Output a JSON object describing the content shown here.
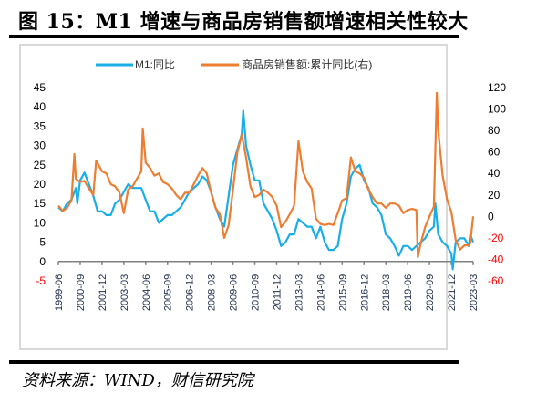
{
  "header": {
    "title": "图 15：M1 增速与商品房销售额增速相关性较大"
  },
  "footer": {
    "source": "资料来源：WIND，财信研究院"
  },
  "colors": {
    "m1": "#1aaee8",
    "sales": "#ed7d31",
    "axis": "#808080",
    "negative_tick": "#ff0000",
    "positive_tick": "#000000"
  },
  "chart_data": {
    "type": "line",
    "title": "M1 增速与商品房销售额增速相关性较大",
    "xlabel": "",
    "ylabel_left": "",
    "ylabel_right": "",
    "legend_position": "top-center",
    "grid": false,
    "legend": [
      "M1:同比",
      "商品房销售额:累计同比(右)"
    ],
    "x_tick_labels": [
      "1999-06",
      "2000-09",
      "2001-12",
      "2003-03",
      "2004-06",
      "2005-09",
      "2006-12",
      "2008-03",
      "2009-06",
      "2010-09",
      "2011-12",
      "2013-03",
      "2014-06",
      "2015-09",
      "2016-12",
      "2018-03",
      "2019-06",
      "2020-09",
      "2021-12",
      "2023-03"
    ],
    "y_left": {
      "ylim": [
        -5,
        45
      ],
      "ticks": [
        -5,
        0,
        5,
        10,
        15,
        20,
        25,
        30,
        35,
        40,
        45
      ]
    },
    "y_right": {
      "ylim": [
        -60,
        120
      ],
      "ticks": [
        -60,
        -40,
        -20,
        0,
        20,
        40,
        60,
        80,
        100,
        120
      ]
    },
    "x_range": [
      "1999-06",
      "2023-03"
    ],
    "series": [
      {
        "name": "M1:同比",
        "axis": "left",
        "points": [
          [
            "1999-06",
            14
          ],
          [
            "1999-09",
            13
          ],
          [
            "1999-12",
            15
          ],
          [
            "2000-03",
            16
          ],
          [
            "2000-06",
            19
          ],
          [
            "2000-07",
            15
          ],
          [
            "2000-09",
            21
          ],
          [
            "2000-12",
            23
          ],
          [
            "2001-03",
            20
          ],
          [
            "2001-06",
            17
          ],
          [
            "2001-09",
            13
          ],
          [
            "2001-12",
            13
          ],
          [
            "2002-03",
            12
          ],
          [
            "2002-06",
            12
          ],
          [
            "2002-09",
            15
          ],
          [
            "2002-12",
            16
          ],
          [
            "2003-03",
            18
          ],
          [
            "2003-06",
            20
          ],
          [
            "2003-09",
            19
          ],
          [
            "2003-12",
            19
          ],
          [
            "2004-03",
            19
          ],
          [
            "2004-06",
            16
          ],
          [
            "2004-09",
            13
          ],
          [
            "2004-12",
            13
          ],
          [
            "2005-03",
            10
          ],
          [
            "2005-06",
            11
          ],
          [
            "2005-09",
            12
          ],
          [
            "2005-12",
            12
          ],
          [
            "2006-03",
            13
          ],
          [
            "2006-06",
            14
          ],
          [
            "2006-09",
            16
          ],
          [
            "2006-12",
            18
          ],
          [
            "2007-03",
            19
          ],
          [
            "2007-06",
            20
          ],
          [
            "2007-09",
            22
          ],
          [
            "2007-12",
            21
          ],
          [
            "2008-03",
            18
          ],
          [
            "2008-06",
            14
          ],
          [
            "2008-09",
            11
          ],
          [
            "2008-12",
            9
          ],
          [
            "2009-03",
            17
          ],
          [
            "2009-06",
            25
          ],
          [
            "2009-09",
            29
          ],
          [
            "2009-12",
            33
          ],
          [
            "2010-01",
            39
          ],
          [
            "2010-03",
            30
          ],
          [
            "2010-06",
            25
          ],
          [
            "2010-09",
            21
          ],
          [
            "2010-12",
            21
          ],
          [
            "2011-03",
            15
          ],
          [
            "2011-06",
            13
          ],
          [
            "2011-09",
            11
          ],
          [
            "2011-12",
            8
          ],
          [
            "2012-03",
            4
          ],
          [
            "2012-06",
            5
          ],
          [
            "2012-09",
            7
          ],
          [
            "2012-12",
            7
          ],
          [
            "2013-03",
            11
          ],
          [
            "2013-06",
            10
          ],
          [
            "2013-09",
            9
          ],
          [
            "2013-12",
            9
          ],
          [
            "2014-03",
            6
          ],
          [
            "2014-06",
            9
          ],
          [
            "2014-09",
            5
          ],
          [
            "2014-12",
            3
          ],
          [
            "2015-03",
            3
          ],
          [
            "2015-06",
            4
          ],
          [
            "2015-09",
            11
          ],
          [
            "2015-12",
            15
          ],
          [
            "2016-03",
            22
          ],
          [
            "2016-06",
            24
          ],
          [
            "2016-09",
            25
          ],
          [
            "2016-12",
            21
          ],
          [
            "2017-03",
            19
          ],
          [
            "2017-06",
            15
          ],
          [
            "2017-09",
            14
          ],
          [
            "2017-12",
            12
          ],
          [
            "2018-03",
            7
          ],
          [
            "2018-06",
            6
          ],
          [
            "2018-09",
            4
          ],
          [
            "2018-12",
            1.5
          ],
          [
            "2019-03",
            4
          ],
          [
            "2019-06",
            4
          ],
          [
            "2019-09",
            3
          ],
          [
            "2019-12",
            4
          ],
          [
            "2020-03",
            5
          ],
          [
            "2020-06",
            6
          ],
          [
            "2020-09",
            8
          ],
          [
            "2020-12",
            9
          ],
          [
            "2021-01",
            15
          ],
          [
            "2021-03",
            7
          ],
          [
            "2021-06",
            5
          ],
          [
            "2021-09",
            4
          ],
          [
            "2021-12",
            2
          ],
          [
            "2022-01",
            -2
          ],
          [
            "2022-03",
            5
          ],
          [
            "2022-06",
            6
          ],
          [
            "2022-09",
            6
          ],
          [
            "2022-12",
            4
          ],
          [
            "2023-01",
            7
          ],
          [
            "2023-03",
            5
          ]
        ]
      },
      {
        "name": "商品房销售额:累计同比(右)",
        "axis": "right",
        "points": [
          [
            "1999-06",
            10
          ],
          [
            "1999-09",
            5
          ],
          [
            "1999-12",
            8
          ],
          [
            "2000-03",
            15
          ],
          [
            "2000-05",
            58
          ],
          [
            "2000-06",
            35
          ],
          [
            "2000-09",
            32
          ],
          [
            "2000-12",
            33
          ],
          [
            "2001-03",
            26
          ],
          [
            "2001-06",
            20
          ],
          [
            "2001-08",
            52
          ],
          [
            "2001-12",
            42
          ],
          [
            "2002-03",
            40
          ],
          [
            "2002-06",
            30
          ],
          [
            "2002-09",
            28
          ],
          [
            "2002-12",
            22
          ],
          [
            "2003-03",
            3
          ],
          [
            "2003-06",
            25
          ],
          [
            "2003-09",
            28
          ],
          [
            "2003-12",
            35
          ],
          [
            "2004-03",
            42
          ],
          [
            "2004-04",
            82
          ],
          [
            "2004-06",
            50
          ],
          [
            "2004-09",
            45
          ],
          [
            "2004-12",
            38
          ],
          [
            "2005-03",
            40
          ],
          [
            "2005-06",
            32
          ],
          [
            "2005-09",
            30
          ],
          [
            "2005-12",
            26
          ],
          [
            "2006-03",
            20
          ],
          [
            "2006-06",
            16
          ],
          [
            "2006-09",
            22
          ],
          [
            "2006-12",
            22
          ],
          [
            "2007-03",
            30
          ],
          [
            "2007-06",
            38
          ],
          [
            "2007-09",
            45
          ],
          [
            "2007-12",
            40
          ],
          [
            "2008-03",
            22
          ],
          [
            "2008-06",
            8
          ],
          [
            "2008-09",
            2
          ],
          [
            "2008-12",
            -20
          ],
          [
            "2009-03",
            -8
          ],
          [
            "2009-06",
            25
          ],
          [
            "2009-09",
            60
          ],
          [
            "2009-12",
            76
          ],
          [
            "2010-03",
            55
          ],
          [
            "2010-06",
            28
          ],
          [
            "2010-09",
            18
          ],
          [
            "2010-12",
            20
          ],
          [
            "2011-03",
            25
          ],
          [
            "2011-06",
            22
          ],
          [
            "2011-09",
            18
          ],
          [
            "2011-12",
            10
          ],
          [
            "2012-03",
            -10
          ],
          [
            "2012-06",
            -5
          ],
          [
            "2012-09",
            2
          ],
          [
            "2012-12",
            10
          ],
          [
            "2013-03",
            70
          ],
          [
            "2013-06",
            42
          ],
          [
            "2013-09",
            32
          ],
          [
            "2013-12",
            26
          ],
          [
            "2014-03",
            -2
          ],
          [
            "2014-06",
            -7
          ],
          [
            "2014-09",
            -8
          ],
          [
            "2014-12",
            -7
          ],
          [
            "2015-03",
            -8
          ],
          [
            "2015-06",
            3
          ],
          [
            "2015-09",
            15
          ],
          [
            "2015-12",
            17
          ],
          [
            "2016-03",
            55
          ],
          [
            "2016-06",
            42
          ],
          [
            "2016-09",
            40
          ],
          [
            "2016-12",
            36
          ],
          [
            "2017-03",
            25
          ],
          [
            "2017-06",
            18
          ],
          [
            "2017-09",
            12
          ],
          [
            "2017-12",
            12
          ],
          [
            "2018-03",
            8
          ],
          [
            "2018-06",
            12
          ],
          [
            "2018-09",
            12
          ],
          [
            "2018-12",
            10
          ],
          [
            "2019-03",
            3
          ],
          [
            "2019-06",
            6
          ],
          [
            "2019-09",
            7
          ],
          [
            "2019-12",
            6
          ],
          [
            "2020-01",
            -38
          ],
          [
            "2020-03",
            -25
          ],
          [
            "2020-06",
            -10
          ],
          [
            "2020-09",
            0
          ],
          [
            "2020-12",
            9
          ],
          [
            "2021-02",
            115
          ],
          [
            "2021-03",
            80
          ],
          [
            "2021-06",
            38
          ],
          [
            "2021-09",
            16
          ],
          [
            "2021-12",
            4
          ],
          [
            "2022-03",
            -22
          ],
          [
            "2022-06",
            -31
          ],
          [
            "2022-09",
            -27
          ],
          [
            "2022-12",
            -27
          ],
          [
            "2023-01",
            -25
          ],
          [
            "2023-03",
            0
          ]
        ]
      }
    ]
  }
}
